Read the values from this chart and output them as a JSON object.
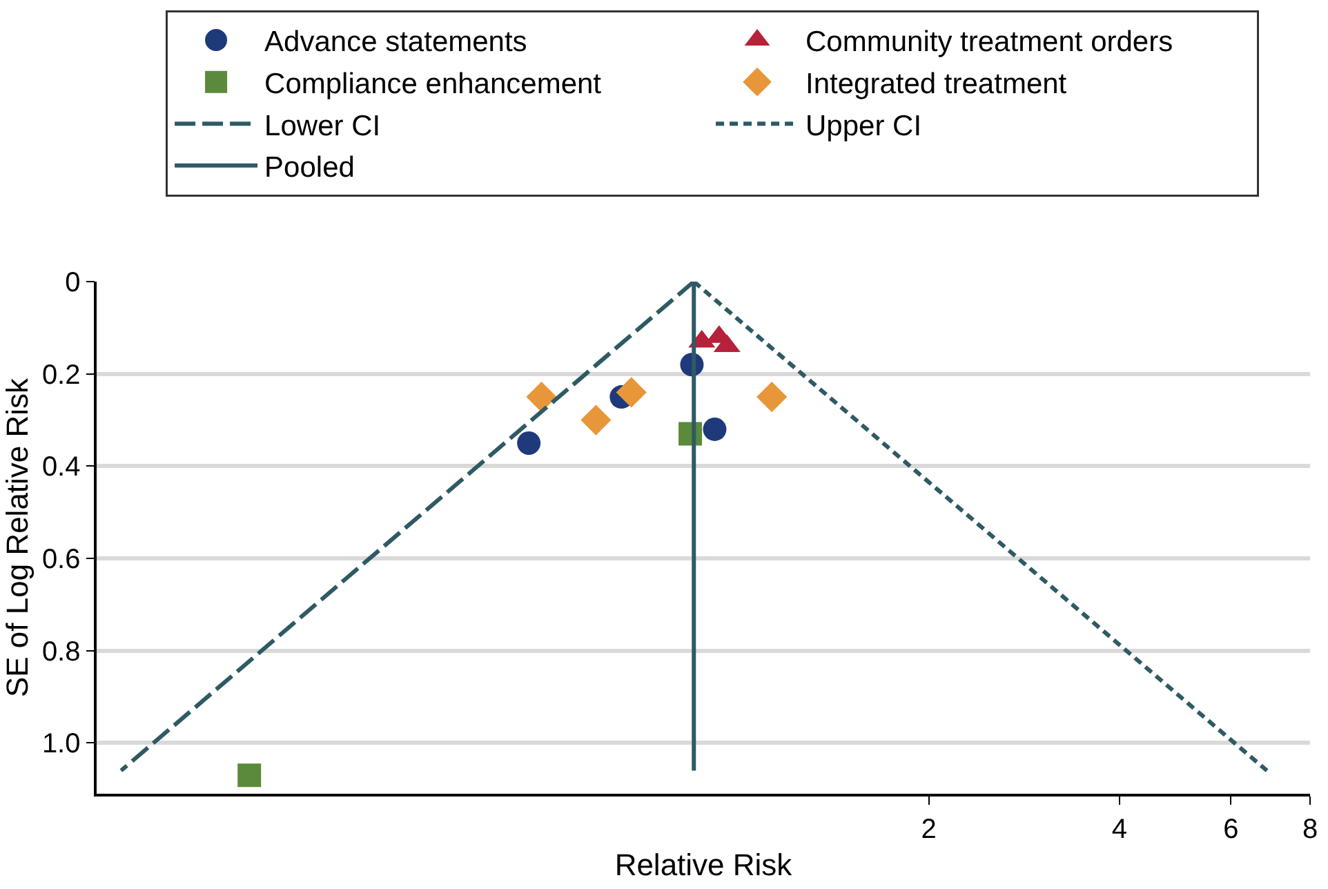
{
  "chart_data": {
    "type": "scatter",
    "xlabel": "Relative Risk",
    "ylabel": "SE of Log Relative Risk",
    "log": "x",
    "xlim": [
      0.097,
      8
    ],
    "xticks": [
      2,
      4,
      6,
      8
    ],
    "ylim": [
      1.11,
      0
    ],
    "yticks": [
      0,
      0.2,
      0.4,
      0.6,
      0.8,
      {
        "value": 1.0,
        "label": "1.0"
      }
    ],
    "grid": "y",
    "legend": "top",
    "series": [
      {
        "name": "Advance statements",
        "color": "#1f3a7a",
        "marker": "circle",
        "x": [
          0.467,
          0.654,
          0.845,
          0.918
        ],
        "values": [
          0.35,
          0.25,
          0.18,
          0.32
        ]
      },
      {
        "name": "Community treatment orders",
        "color": "#b5223a",
        "marker": "triangle",
        "x": [
          0.876,
          0.933,
          0.96
        ],
        "values": [
          0.13,
          0.12,
          0.14
        ]
      },
      {
        "name": "Compliance enhancement",
        "color": "#5a8a3a",
        "marker": "square",
        "x": [
          0.84,
          0.169
        ],
        "values": [
          0.33,
          1.07
        ]
      },
      {
        "name": "Integrated treatment",
        "color": "#e8963a",
        "marker": "diamond",
        "x": [
          0.489,
          0.596,
          0.678,
          1.13
        ],
        "values": [
          0.25,
          0.3,
          0.24,
          0.25
        ]
      },
      {
        "name": "Lower CI",
        "type": "line",
        "color": "#2f5a64",
        "line_style": "dashed",
        "marker": "none",
        "x": [
          0.851,
          0.106
        ],
        "values": [
          0,
          1.06
        ]
      },
      {
        "name": "Upper CI",
        "type": "line",
        "color": "#2f5a64",
        "line_style": "dotted",
        "marker": "none",
        "x": [
          0.851,
          6.84
        ],
        "values": [
          0,
          1.06
        ]
      },
      {
        "name": "Pooled",
        "type": "line",
        "color": "#2f5a64",
        "line_style": "solid",
        "marker": "none",
        "x": [
          0.851,
          0.851
        ],
        "values": [
          0,
          1.06
        ]
      }
    ]
  }
}
